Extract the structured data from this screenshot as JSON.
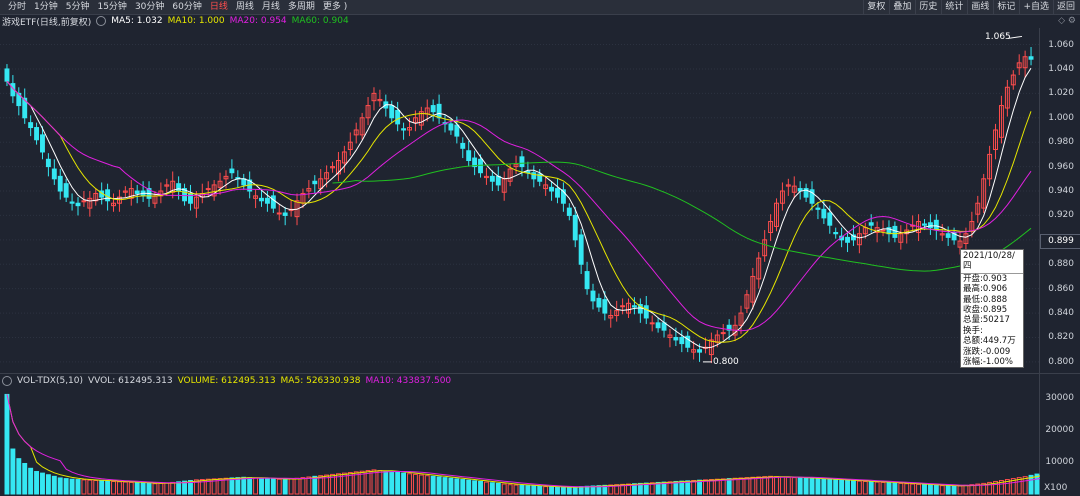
{
  "toolbar": {
    "periods": [
      "分时",
      "1分钟",
      "5分钟",
      "15分钟",
      "30分钟",
      "60分钟",
      "日线",
      "周线",
      "月线",
      "多周期",
      "更多 )"
    ],
    "active": "日线",
    "right_buttons": [
      "复权",
      "叠加",
      "历史",
      "统计",
      "画线",
      "标记",
      "+自选",
      "返回"
    ]
  },
  "legend": {
    "name": "游戏ETF(日线,前复权)",
    "ma5": "MA5: 1.032",
    "ma10": "MA10: 1.000",
    "ma20": "MA20: 0.954",
    "ma60": "MA60: 0.904"
  },
  "vol_legend": {
    "name": "VOL-TDX(5,10)",
    "vvol": "VVOL: 612495.313",
    "volume": "VOLUME: 612495.313",
    "ma5": "MA5: 526330.938",
    "ma10": "MA10: 433837.500"
  },
  "price_ticks": [
    "1.060",
    "1.040",
    "1.020",
    "1.000",
    "0.980",
    "0.960",
    "0.940",
    "0.920",
    "0.900",
    "0.880",
    "0.860",
    "0.840",
    "0.820",
    "0.800"
  ],
  "vol_ticks": [
    "30000",
    "20000",
    "10000"
  ],
  "vol_unit": "X100",
  "current_price": "0.899",
  "high_label": "1.065",
  "low_label": "0.800",
  "tooltip": {
    "date": "2021/10/28/四",
    "open": "开盘:0.903",
    "high": "最高:0.906",
    "low": "最低:0.888",
    "close": "收盘:0.895",
    "volume": "总量:50217",
    "turnover": "换手:",
    "amount": "总额:449.7万",
    "change": "涨跌:-0.009",
    "pct": "涨幅:-1.00%"
  },
  "colors": {
    "up": "#ff4d4d",
    "down": "#35e7f2",
    "ma5": "#ffffff",
    "ma10": "#e6e600",
    "ma20": "#e020e0",
    "ma60": "#20c020",
    "background": "#1f2430"
  },
  "chart_data": {
    "type": "candlestick",
    "y_range": [
      0.795,
      1.067
    ],
    "closes": [
      1.03,
      1.018,
      1.01,
      1.0,
      0.992,
      0.982,
      0.972,
      0.96,
      0.95,
      0.94,
      0.935,
      0.93,
      0.928,
      0.932,
      0.934,
      0.938,
      0.935,
      0.932,
      0.93,
      0.935,
      0.94,
      0.942,
      0.938,
      0.936,
      0.934,
      0.936,
      0.94,
      0.945,
      0.948,
      0.94,
      0.932,
      0.93,
      0.935,
      0.938,
      0.942,
      0.945,
      0.948,
      0.952,
      0.955,
      0.95,
      0.945,
      0.94,
      0.936,
      0.932,
      0.93,
      0.926,
      0.922,
      0.92,
      0.925,
      0.932,
      0.938,
      0.942,
      0.946,
      0.95,
      0.955,
      0.96,
      0.965,
      0.972,
      0.98,
      0.99,
      1.0,
      1.01,
      1.02,
      1.015,
      1.008,
      1.0,
      0.995,
      0.99,
      0.992,
      1.0,
      1.005,
      1.008,
      1.005,
      1.0,
      0.995,
      0.99,
      0.985,
      0.975,
      0.965,
      0.96,
      0.955,
      0.952,
      0.948,
      0.945,
      0.95,
      0.958,
      0.962,
      0.96,
      0.955,
      0.95,
      0.948,
      0.945,
      0.94,
      0.935,
      0.93,
      0.92,
      0.9,
      0.88,
      0.86,
      0.85,
      0.845,
      0.84,
      0.838,
      0.842,
      0.846,
      0.848,
      0.845,
      0.84,
      0.836,
      0.832,
      0.828,
      0.826,
      0.822,
      0.818,
      0.815,
      0.812,
      0.81,
      0.808,
      0.812,
      0.818,
      0.822,
      0.824,
      0.826,
      0.83,
      0.84,
      0.855,
      0.87,
      0.885,
      0.9,
      0.915,
      0.93,
      0.94,
      0.945,
      0.944,
      0.94,
      0.935,
      0.93,
      0.925,
      0.918,
      0.912,
      0.905,
      0.9,
      0.898,
      0.9,
      0.905,
      0.91,
      0.912,
      0.91,
      0.908,
      0.905,
      0.902,
      0.905,
      0.908,
      0.912,
      0.915,
      0.912,
      0.91,
      0.908,
      0.905,
      0.902,
      0.9,
      0.899,
      0.905,
      0.915,
      0.93,
      0.95,
      0.97,
      0.99,
      1.01,
      1.025,
      1.035,
      1.045,
      1.05,
      1.048
    ],
    "volume_range": [
      0,
      33000
    ],
    "volumes": [
      31000,
      14000,
      11000,
      9500,
      8000,
      7000,
      6500,
      6000,
      5500,
      5000,
      4800,
      4600,
      4500,
      4400,
      4300,
      4200,
      4100,
      4000,
      3900,
      3800,
      3700,
      3600,
      3500,
      3400,
      3300,
      3200,
      3300,
      3400,
      3600,
      3800,
      4000,
      4200,
      4400,
      4500,
      4600,
      4700,
      4800,
      4900,
      5000,
      5100,
      5200,
      5100,
      5000,
      4900,
      4800,
      4700,
      4600,
      4500,
      4700,
      4900,
      5100,
      5300,
      5500,
      5700,
      5900,
      6100,
      6300,
      6500,
      6700,
      6900,
      7100,
      7300,
      7500,
      7300,
      7100,
      6900,
      6700,
      6500,
      6300,
      6100,
      5900,
      5700,
      5500,
      5300,
      5100,
      4900,
      4700,
      4500,
      4300,
      4100,
      3900,
      3700,
      3500,
      3300,
      3100,
      2900,
      2800,
      2700,
      2600,
      2500,
      2400,
      2300,
      2200,
      2100,
      2000,
      2100,
      2200,
      2300,
      2400,
      2500,
      2600,
      2700,
      2800,
      2900,
      3000,
      3100,
      3200,
      3300,
      3400,
      3500,
      3600,
      3700,
      3800,
      3900,
      4000,
      4100,
      4200,
      4300,
      4400,
      4500,
      4600,
      4700,
      4800,
      4900,
      5000,
      5100,
      5200,
      5300,
      5400,
      5500,
      5400,
      5300,
      5200,
      5100,
      5000,
      4900,
      4800,
      4700,
      4600,
      4500,
      4400,
      4300,
      4200,
      4100,
      4000,
      3900,
      3800,
      3700,
      3600,
      3500,
      3400,
      3300,
      3200,
      3100,
      3000,
      2900,
      2800,
      2700,
      2600,
      2500,
      2400,
      2500,
      2700,
      2900,
      3100,
      3300,
      3600,
      3900,
      4200,
      4500,
      4800,
      5100,
      5400,
      5800,
      6200,
      6600,
      7000,
      7500,
      8000,
      6500
    ]
  }
}
